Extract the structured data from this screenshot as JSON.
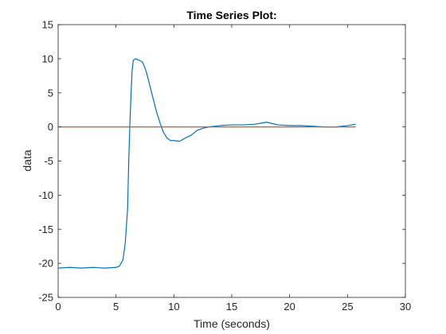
{
  "chart_data": {
    "type": "line",
    "title": "Time Series Plot:",
    "xlabel": "Time (seconds)",
    "ylabel": "data",
    "xlim": [
      0,
      30
    ],
    "ylim": [
      -25,
      15
    ],
    "xticks": [
      0,
      5,
      10,
      15,
      20,
      25,
      30
    ],
    "yticks": [
      -25,
      -20,
      -15,
      -10,
      -5,
      0,
      5,
      10,
      15
    ],
    "grid": false,
    "series": [
      {
        "color": "#0072BD",
        "x": [
          0,
          1,
          2,
          3,
          4,
          5,
          5.3,
          5.6,
          5.8,
          6.0,
          6.1,
          6.2,
          6.3,
          6.4,
          6.5,
          6.7,
          7.0,
          7.3,
          7.6,
          7.9,
          8.2,
          8.5,
          8.8,
          9.1,
          9.4,
          9.7,
          10.0,
          10.5,
          11.0,
          11.5,
          12.0,
          12.5,
          13.0,
          14.0,
          15.0,
          16.0,
          17.0,
          18.0,
          19.0,
          20.0,
          21.0,
          22.0,
          23.0,
          24.0,
          25.0,
          25.7
        ],
        "y": [
          -20.7,
          -20.6,
          -20.7,
          -20.6,
          -20.7,
          -20.6,
          -20.4,
          -19.5,
          -17.0,
          -12.0,
          -5.0,
          0.5,
          5.0,
          8.5,
          9.8,
          10.0,
          9.8,
          9.5,
          8.2,
          6.2,
          4.2,
          2.2,
          0.6,
          -0.8,
          -1.6,
          -2.0,
          -2.0,
          -2.1,
          -1.6,
          -1.2,
          -0.5,
          -0.2,
          0.0,
          0.2,
          0.3,
          0.3,
          0.4,
          0.7,
          0.3,
          0.2,
          0.2,
          0.1,
          0.0,
          0.0,
          0.2,
          0.4
        ]
      },
      {
        "color": "#D95319",
        "x": [
          0,
          25.7
        ],
        "y": [
          0,
          0
        ]
      }
    ]
  }
}
